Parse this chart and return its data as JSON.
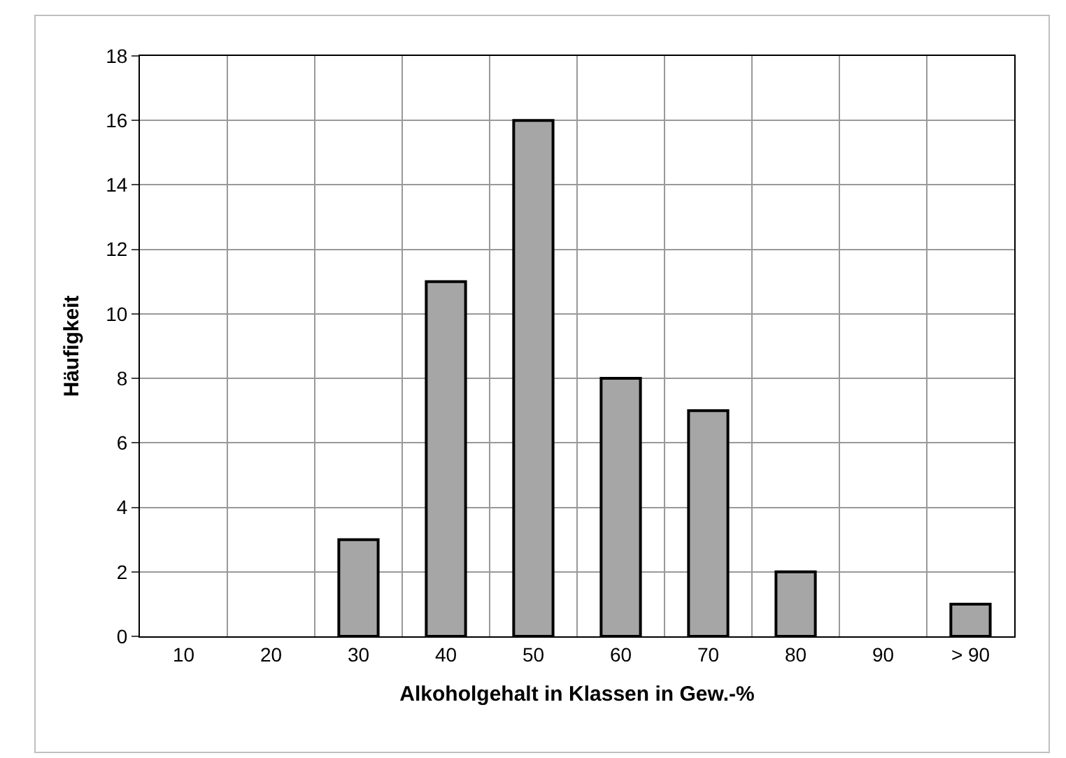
{
  "chart_data": {
    "type": "bar",
    "xlabel": "Alkoholgehalt in Klassen in Gew.-%",
    "ylabel": "Häufigkeit",
    "categories": [
      "10",
      "20",
      "30",
      "40",
      "50",
      "60",
      "70",
      "80",
      "90",
      "> 90"
    ],
    "values": [
      0,
      0,
      3,
      11,
      16,
      8,
      7,
      2,
      0,
      1
    ],
    "color": "#a6a6a6",
    "ylim": [
      0,
      18
    ],
    "yticks": [
      0,
      2,
      4,
      6,
      8,
      10,
      12,
      14,
      16,
      18
    ],
    "grid": true
  }
}
